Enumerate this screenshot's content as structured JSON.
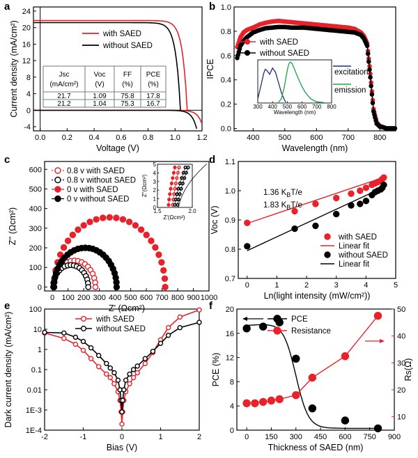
{
  "colors": {
    "red": "#e8212a",
    "black": "#000000",
    "blue": "#1c2f7a",
    "green": "#1aa34a"
  },
  "chart_data": [
    {
      "panel": "a",
      "type": "line",
      "xlabel": "Voltage (V)",
      "ylabel": "Current density (mA/cm²)",
      "xlim": [
        -0.05,
        1.2
      ],
      "ylim": [
        -5,
        25
      ],
      "xticks": [
        0.0,
        0.2,
        0.4,
        0.6,
        0.8,
        1.0,
        1.2
      ],
      "xtick_labels": [
        "0.0",
        "0.2",
        "0.4",
        "0.6",
        "0.8",
        "1.0",
        "1.2"
      ],
      "yticks": [
        -4,
        0,
        4,
        8,
        12,
        16,
        20,
        24
      ],
      "ytick_labels": [
        "-4",
        "0",
        "4",
        "8",
        "12",
        "16",
        "20",
        "24"
      ],
      "series": [
        {
          "name": "with   SAED",
          "color": "red",
          "jsc": 21.7,
          "voc": 1.09,
          "dark_curve": true
        },
        {
          "name": "without SAED",
          "color": "black",
          "jsc": 21.2,
          "voc": 1.04,
          "dark_curve": true
        }
      ],
      "legend": [
        {
          "label": "with   SAED",
          "color": "red"
        },
        {
          "label": "without SAED",
          "color": "black"
        }
      ],
      "table": {
        "headers": [
          [
            "Jsc",
            "(mA/cm²)"
          ],
          [
            "Voc",
            "(V)"
          ],
          [
            "FF",
            "(%)"
          ],
          [
            "PCE",
            "(%)"
          ]
        ],
        "rows": [
          [
            "21.7",
            "1.09",
            "75.8",
            "17.8"
          ],
          [
            "21.2",
            "1.04",
            "75.3",
            "16.7"
          ]
        ]
      }
    },
    {
      "panel": "b",
      "type": "line",
      "xlabel": "Wavelength (nm)",
      "ylabel": "IPCE",
      "xlim": [
        340,
        850
      ],
      "ylim": [
        -0.02,
        1.0
      ],
      "xticks": [
        400,
        500,
        600,
        700,
        800
      ],
      "xtick_labels": [
        "400",
        "500",
        "600",
        "700",
        "800"
      ],
      "yticks": [
        0.0,
        0.2,
        0.4,
        0.6,
        0.8,
        1.0
      ],
      "ytick_labels": [
        "0.0",
        "0.2",
        "0.4",
        "0.6",
        "0.8",
        "1.0"
      ],
      "series": [
        {
          "name": "with   SAED",
          "color": "red",
          "x": [
            350,
            360,
            370,
            380,
            390,
            400,
            420,
            440,
            460,
            480,
            500,
            520,
            540,
            560,
            580,
            600,
            620,
            640,
            660,
            680,
            700,
            720,
            740,
            750,
            760,
            770,
            780,
            790,
            800,
            810,
            820,
            830,
            840,
            850
          ],
          "y": [
            0.67,
            0.75,
            0.79,
            0.81,
            0.82,
            0.83,
            0.855,
            0.87,
            0.88,
            0.885,
            0.88,
            0.875,
            0.87,
            0.865,
            0.86,
            0.855,
            0.85,
            0.845,
            0.84,
            0.835,
            0.83,
            0.82,
            0.79,
            0.76,
            0.7,
            0.45,
            0.16,
            0.05,
            0.02,
            0.01,
            0.0,
            0.0,
            0.0,
            0.0
          ]
        },
        {
          "name": "without SAED",
          "color": "black",
          "x": [
            350,
            360,
            370,
            380,
            390,
            400,
            420,
            440,
            460,
            480,
            500,
            520,
            540,
            560,
            580,
            600,
            620,
            640,
            660,
            680,
            700,
            720,
            740,
            750,
            760,
            770,
            780,
            790,
            800,
            810,
            820,
            830,
            840,
            850
          ],
          "y": [
            0.58,
            0.68,
            0.72,
            0.75,
            0.77,
            0.79,
            0.81,
            0.825,
            0.83,
            0.835,
            0.835,
            0.83,
            0.83,
            0.83,
            0.825,
            0.82,
            0.815,
            0.81,
            0.805,
            0.8,
            0.795,
            0.79,
            0.77,
            0.74,
            0.68,
            0.42,
            0.14,
            0.04,
            0.015,
            0.01,
            0.0,
            0.0,
            0.0,
            0.0
          ]
        }
      ],
      "legend": [
        {
          "label": "with   SAED",
          "color": "red"
        },
        {
          "label": "without SAED",
          "color": "black"
        }
      ],
      "inset": {
        "xlabel": "Wavelength (nm)",
        "xlim": [
          300,
          800
        ],
        "xticks": [
          300,
          400,
          500,
          600,
          700,
          800
        ],
        "xtick_labels": [
          "300",
          "400",
          "500",
          "600",
          "700",
          "800"
        ],
        "series": [
          {
            "name": "excitation",
            "color": "blue",
            "x": [
              300,
              320,
              340,
              350,
              360,
              380,
              400,
              420,
              440,
              460,
              480,
              490
            ],
            "y": [
              0.1,
              0.4,
              0.72,
              0.82,
              0.8,
              0.7,
              0.85,
              0.75,
              0.5,
              0.25,
              0.08,
              0.02
            ]
          },
          {
            "name": "emission",
            "color": "green",
            "x": [
              440,
              460,
              480,
              500,
              510,
              520,
              530,
              540,
              560,
              580,
              600,
              620,
              640,
              660,
              680,
              700,
              720,
              750
            ],
            "y": [
              0.02,
              0.1,
              0.4,
              0.8,
              0.95,
              1.0,
              0.97,
              0.9,
              0.72,
              0.55,
              0.4,
              0.27,
              0.18,
              0.1,
              0.06,
              0.03,
              0.02,
              0.01
            ]
          }
        ]
      }
    },
    {
      "panel": "c",
      "type": "scatter",
      "xlabel": "Z' (Ωcm²)",
      "ylabel": "Z'' (Ωcm²)",
      "xlim": [
        -50,
        1000
      ],
      "ylim": [
        -20,
        640
      ],
      "xticks": [
        0,
        100,
        200,
        300,
        400,
        500,
        600,
        700,
        800,
        900,
        1000
      ],
      "xtick_labels": [
        "0",
        "100",
        "200",
        "300",
        "400",
        "500",
        "600",
        "700",
        "800",
        "900",
        "1000"
      ],
      "yticks": [
        0,
        100,
        200,
        300,
        400,
        500,
        600
      ],
      "ytick_labels": [
        "0",
        "100",
        "200",
        "300",
        "400",
        "500",
        "600"
      ],
      "series": [
        {
          "name": "0.8 v  with   SAED",
          "color": "red",
          "filled": false,
          "center": 135,
          "radius": 135,
          "offset": 5
        },
        {
          "name": "0.8 v  without SAED",
          "color": "black",
          "filled": false,
          "center": 112,
          "radius": 112,
          "offset": 5
        },
        {
          "name": "0 v     with   SAED",
          "color": "red",
          "filled": true,
          "center": 360,
          "radius": 355,
          "offset": 5
        },
        {
          "name": "0 v     without SAED",
          "color": "black",
          "filled": true,
          "center": 205,
          "radius": 200,
          "offset": 5
        }
      ],
      "legend": [
        {
          "label": "0.8 v  with   SAED",
          "color": "red",
          "filled": false
        },
        {
          "label": "0.8 v  without SAED",
          "color": "black",
          "filled": false
        },
        {
          "label": "0 v     with   SAED",
          "color": "red",
          "filled": true
        },
        {
          "label": "0 v     without SAED",
          "color": "black",
          "filled": true
        }
      ],
      "inset": {
        "xlabel": "Z'(Ωcm²)",
        "ylabel": "Z''(Ωcm²)",
        "xlim": [
          1.5,
          2.0
        ],
        "ylim": [
          0,
          5
        ],
        "xticks": [
          1.5,
          2.0
        ],
        "xtick_labels": [
          "1.5",
          "2.0"
        ],
        "yticks": [
          0,
          1,
          2,
          3,
          4,
          5
        ],
        "ytick_labels": [
          "0",
          "1",
          "2",
          "3",
          "4",
          "5"
        ]
      }
    },
    {
      "panel": "d",
      "type": "scatter",
      "xlabel": "Ln(light intensity (mW/cm²))",
      "ylabel": "Voc (V)",
      "xlim": [
        -0.3,
        5
      ],
      "ylim": [
        0.7,
        1.1
      ],
      "xticks": [
        0,
        1,
        2,
        3,
        4,
        5
      ],
      "xtick_labels": [
        "0",
        "1",
        "2",
        "3",
        "4",
        "5"
      ],
      "yticks": [
        0.7,
        0.8,
        0.9,
        1.0,
        1.1
      ],
      "ytick_labels": [
        "0.7",
        "0.8",
        "0.9",
        "1.0",
        "1.1"
      ],
      "series": [
        {
          "name": "with   SAED",
          "color": "red",
          "x": [
            0,
            1.6,
            2.3,
            3.0,
            3.5,
            3.8,
            4.0,
            4.2,
            4.3,
            4.4,
            4.5,
            4.55,
            4.6
          ],
          "y": [
            0.89,
            0.93,
            0.955,
            0.975,
            0.99,
            1.0,
            1.01,
            1.02,
            1.025,
            1.03,
            1.035,
            1.04,
            1.045
          ]
        },
        {
          "name": "without SAED",
          "color": "black",
          "x": [
            0,
            1.6,
            2.3,
            3.0,
            3.5,
            3.8,
            4.0,
            4.2,
            4.3,
            4.4,
            4.5,
            4.55,
            4.6
          ],
          "y": [
            0.81,
            0.87,
            0.88,
            0.92,
            0.95,
            0.955,
            0.965,
            0.985,
            0.995,
            1.0,
            1.005,
            1.01,
            1.02
          ]
        },
        {
          "name": "Linear fit",
          "color": "red",
          "fit": [
            0.888,
            0.0343
          ]
        },
        {
          "name": "Linear fit",
          "color": "black",
          "fit": [
            0.795,
            0.0472
          ]
        }
      ],
      "legend": [
        {
          "label": "with   SAED",
          "color": "red",
          "kind": "dot"
        },
        {
          "label": "Linear fit",
          "color": "red",
          "kind": "line"
        },
        {
          "label": "without SAED",
          "color": "black",
          "kind": "dot"
        },
        {
          "label": "Linear fit",
          "color": "black",
          "kind": "line"
        }
      ],
      "annotations": [
        {
          "text": "1.36 K",
          "sub": "B",
          "tail": "T/e",
          "color": "red"
        },
        {
          "text": "1.83 K",
          "sub": "B",
          "tail": "T/e",
          "color": "black"
        }
      ]
    },
    {
      "panel": "e",
      "type": "line",
      "yscale": "log",
      "xlabel": "Bias (V)",
      "ylabel": "Dark current density (mA/cm²)",
      "xlim": [
        -2,
        2
      ],
      "ylim": [
        0.0001,
        100
      ],
      "xticks": [
        -2,
        -1,
        0,
        1,
        2
      ],
      "xtick_labels": [
        "-2",
        "-1",
        "0",
        "1",
        "2"
      ],
      "yticks": [
        100,
        10,
        1,
        0.1,
        0.01,
        0.001,
        0.0001
      ],
      "ytick_labels": [
        "100",
        "10",
        "1",
        "0.1",
        "0.01",
        "1E-3",
        "1E-4"
      ],
      "series": [
        {
          "name": "with   SAED",
          "color": "red",
          "x": [
            -2,
            -1.5,
            -1.2,
            -1.0,
            -0.8,
            -0.6,
            -0.4,
            -0.3,
            -0.2,
            -0.1,
            -0.05,
            -0.02,
            0,
            0.02,
            0.05,
            0.1,
            0.2,
            0.3,
            0.4,
            0.6,
            0.8,
            1.0,
            1.2,
            1.5,
            2
          ],
          "y": [
            6.5,
            3.5,
            1.8,
            0.9,
            0.35,
            0.14,
            0.06,
            0.04,
            0.02,
            0.008,
            0.003,
            0.0008,
            0.0002,
            0.0008,
            0.003,
            0.008,
            0.02,
            0.04,
            0.07,
            0.2,
            0.7,
            3,
            12,
            40,
            90
          ]
        },
        {
          "name": "without SAED",
          "color": "black",
          "x": [
            -2,
            -1.5,
            -1.2,
            -1.0,
            -0.8,
            -0.6,
            -0.4,
            -0.3,
            -0.2,
            -0.1,
            -0.05,
            -0.02,
            0,
            0.02,
            0.05,
            0.1,
            0.2,
            0.3,
            0.4,
            0.6,
            0.8,
            1.0,
            1.2,
            1.5,
            2
          ],
          "y": [
            7,
            6.5,
            4,
            2.5,
            1.2,
            0.5,
            0.2,
            0.12,
            0.07,
            0.03,
            0.01,
            0.003,
            0.0008,
            0.003,
            0.01,
            0.03,
            0.06,
            0.1,
            0.15,
            0.35,
            0.8,
            2,
            5,
            12,
            22
          ]
        }
      ],
      "legend": [
        {
          "label": "with   SAED",
          "color": "red"
        },
        {
          "label": "without SAED",
          "color": "black"
        }
      ]
    },
    {
      "panel": "f",
      "type": "line",
      "xlabel": "Thickness of SAED (nm)",
      "ylabel": "PCE (%)",
      "ylabel_right": "Rs(Ω)",
      "xlim": [
        -60,
        900
      ],
      "ylim": [
        0,
        20
      ],
      "ylim_right": [
        5,
        50
      ],
      "xticks": [
        0,
        150,
        300,
        450,
        600,
        750,
        900
      ],
      "xtick_labels": [
        "0",
        "150",
        "300",
        "450",
        "600",
        "750",
        "900"
      ],
      "yticks": [
        0,
        4,
        8,
        12,
        16,
        20
      ],
      "ytick_labels": [
        "0",
        "4",
        "8",
        "12",
        "16",
        "20"
      ],
      "yticks_right": [
        10,
        20,
        30,
        40,
        50
      ],
      "ytick_labels_right": [
        "10",
        "20",
        "30",
        "40",
        "50"
      ],
      "series": [
        {
          "name": "PCE",
          "color": "black",
          "axis": "left",
          "x": [
            0,
            100,
            200,
            300,
            400,
            600,
            800
          ],
          "y": [
            16.8,
            17.1,
            17.8,
            11.8,
            3.6,
            1.6,
            0.3
          ]
        },
        {
          "name": "Resistance",
          "color": "red",
          "axis": "right",
          "x": [
            0,
            50,
            100,
            150,
            200,
            300,
            400,
            600,
            800
          ],
          "y": [
            15,
            15,
            15.5,
            16,
            16.5,
            18,
            24.5,
            32.5,
            47.5
          ]
        }
      ],
      "legend": [
        {
          "label": "PCE",
          "color": "black"
        },
        {
          "label": "Resistance",
          "color": "red"
        }
      ]
    }
  ]
}
